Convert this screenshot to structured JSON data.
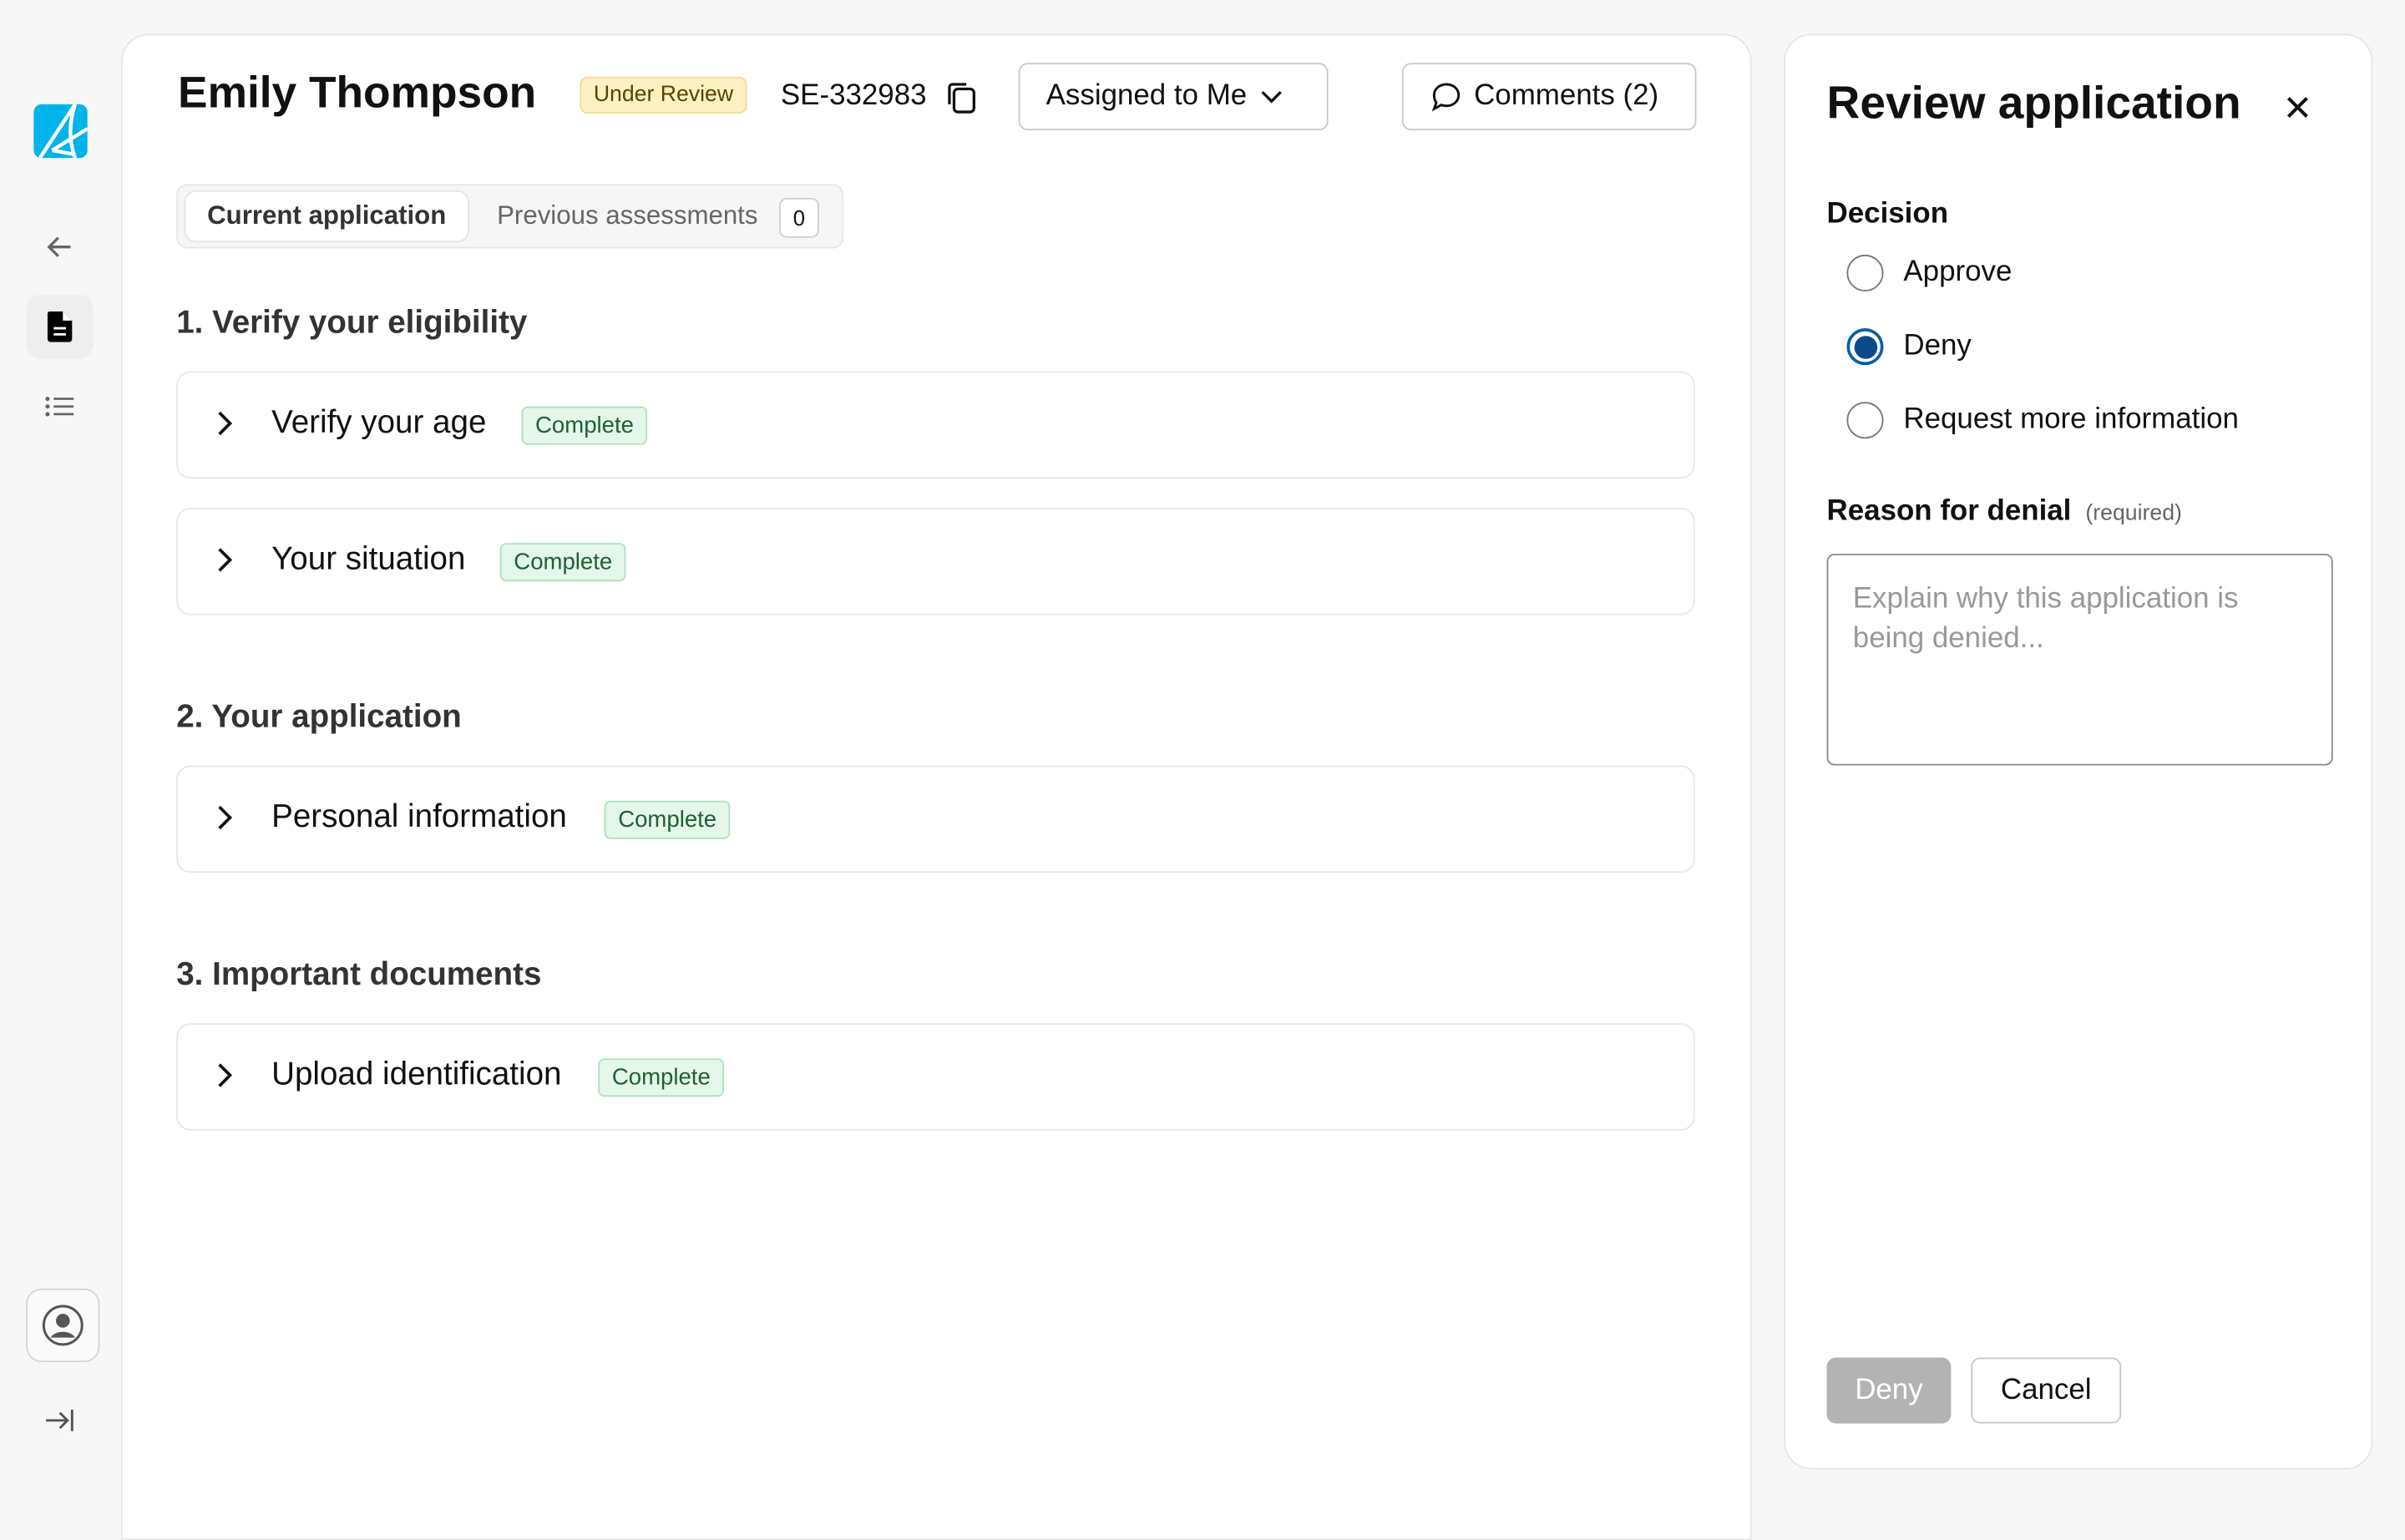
{
  "sidebar": {
    "logo": "A",
    "items": [
      {
        "icon": "arrow-left-icon"
      },
      {
        "icon": "document-icon",
        "active": true
      },
      {
        "icon": "list-icon"
      }
    ],
    "bottom": [
      {
        "icon": "user-circle-icon"
      },
      {
        "icon": "collapse-right-icon"
      }
    ]
  },
  "header": {
    "name": "Emily Thompson",
    "status": "Under Review",
    "case_id": "SE-332983",
    "assigned": "Assigned to Me",
    "comments": "Comments (2)"
  },
  "tabs": {
    "current": "Current application",
    "previous": "Previous assessments",
    "previous_count": "0"
  },
  "sections": [
    {
      "title": "1. Verify your eligibility",
      "items": [
        {
          "label": "Verify your age",
          "status": "Complete"
        },
        {
          "label": "Your situation",
          "status": "Complete"
        }
      ]
    },
    {
      "title": "2. Your application",
      "items": [
        {
          "label": "Personal information",
          "status": "Complete"
        }
      ]
    },
    {
      "title": "3. Important documents",
      "items": [
        {
          "label": "Upload identification",
          "status": "Complete"
        }
      ]
    }
  ],
  "review": {
    "title": "Review application",
    "decision_label": "Decision",
    "options": [
      "Approve",
      "Deny",
      "Request more information"
    ],
    "selected": "Deny",
    "reason_label": "Reason for denial",
    "reason_required": "(required)",
    "reason_placeholder": "Explain why this application is being denied...",
    "deny_button": "Deny",
    "cancel_button": "Cancel"
  },
  "colors": {
    "logo": "#00b3ea",
    "radio_selected": "#0b4a8a",
    "status_review_bg": "#fdf1c4",
    "status_complete_bg": "#e4f7ea"
  }
}
